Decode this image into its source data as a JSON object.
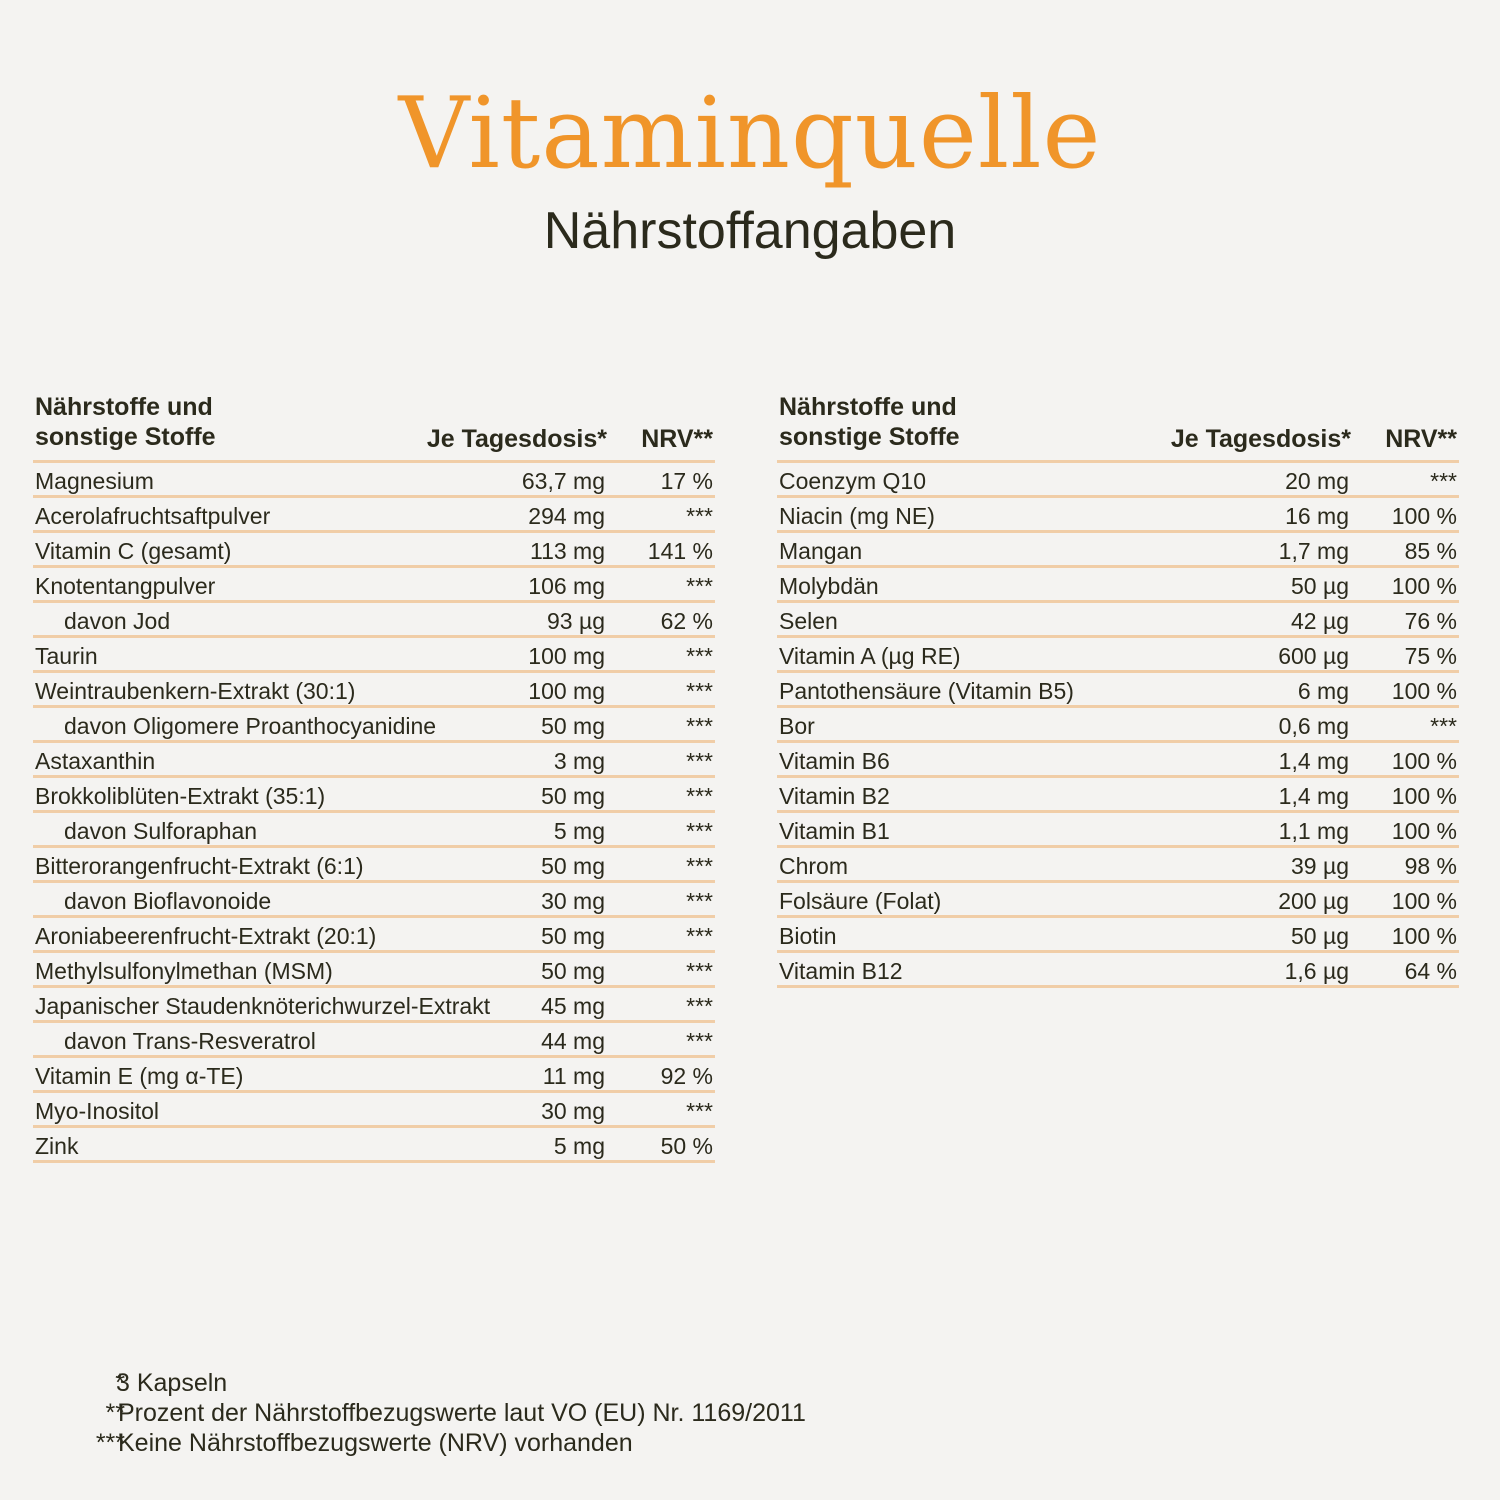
{
  "header": {
    "title": "Vitaminquelle",
    "subtitle": "Nährstoffangaben"
  },
  "columns": {
    "name_line1": "Nährstoffe und",
    "name_line2": "sonstige Stoffe",
    "dose": "Je Tagesdosis*",
    "nrv": "NRV**"
  },
  "left_table": [
    {
      "name": "Magnesium",
      "dose": "63,7 mg",
      "nrv": "17 %",
      "sub": false
    },
    {
      "name": "Acerolafruchtsaftpulver",
      "dose": "294 mg",
      "nrv": "***",
      "sub": false
    },
    {
      "name": "Vitamin C  (gesamt)",
      "dose": "113 mg",
      "nrv": "141 %",
      "sub": false
    },
    {
      "name": "Knotentangpulver",
      "dose": "106 mg",
      "nrv": "***",
      "sub": false
    },
    {
      "name": "davon Jod",
      "dose": "93 µg",
      "nrv": "62 %",
      "sub": true
    },
    {
      "name": "Taurin",
      "dose": "100 mg",
      "nrv": "***",
      "sub": false
    },
    {
      "name": "Weintraubenkern-Extrakt (30:1)",
      "dose": "100 mg",
      "nrv": "***",
      "sub": false
    },
    {
      "name": "davon Oligomere Proanthocyanidine",
      "dose": "50 mg",
      "nrv": "***",
      "sub": true
    },
    {
      "name": "Astaxanthin",
      "dose": "3 mg",
      "nrv": "***",
      "sub": false
    },
    {
      "name": "Brokkoliblüten-Extrakt (35:1)",
      "dose": "50 mg",
      "nrv": "***",
      "sub": false
    },
    {
      "name": "davon Sulforaphan",
      "dose": "5 mg",
      "nrv": "***",
      "sub": true
    },
    {
      "name": "Bitterorangenfrucht-Extrakt (6:1)",
      "dose": "50 mg",
      "nrv": "***",
      "sub": false
    },
    {
      "name": "davon Bioflavonoide",
      "dose": "30 mg",
      "nrv": "***",
      "sub": true
    },
    {
      "name": "Aroniabeerenfrucht-Extrakt (20:1)",
      "dose": "50 mg",
      "nrv": "***",
      "sub": false
    },
    {
      "name": "Methylsulfonylmethan (MSM)",
      "dose": "50 mg",
      "nrv": "***",
      "sub": false
    },
    {
      "name": "Japanischer Staudenknöterichwurzel-Extrakt",
      "dose": "45 mg",
      "nrv": "***",
      "sub": false
    },
    {
      "name": "davon Trans-Resveratrol",
      "dose": "44 mg",
      "nrv": "***",
      "sub": true
    },
    {
      "name": "Vitamin E (mg α-TE)",
      "dose": "11 mg",
      "nrv": "92 %",
      "sub": false
    },
    {
      "name": "Myo-Inositol",
      "dose": "30 mg",
      "nrv": "***",
      "sub": false
    },
    {
      "name": "Zink",
      "dose": "5 mg",
      "nrv": "50 %",
      "sub": false
    }
  ],
  "right_table": [
    {
      "name": "Coenzym Q10",
      "dose": "20 mg",
      "nrv": "***",
      "sub": false
    },
    {
      "name": "Niacin (mg NE)",
      "dose": "16 mg",
      "nrv": "100 %",
      "sub": false
    },
    {
      "name": "Mangan",
      "dose": "1,7 mg",
      "nrv": "85 %",
      "sub": false
    },
    {
      "name": "Molybdän",
      "dose": "50 µg",
      "nrv": "100 %",
      "sub": false
    },
    {
      "name": "Selen",
      "dose": "42 µg",
      "nrv": "76 %",
      "sub": false
    },
    {
      "name": "Vitamin A (µg RE)",
      "dose": "600 µg",
      "nrv": "75 %",
      "sub": false
    },
    {
      "name": "Pantothensäure (Vitamin B5)",
      "dose": "6 mg",
      "nrv": "100 %",
      "sub": false
    },
    {
      "name": "Bor",
      "dose": "0,6 mg",
      "nrv": "***",
      "sub": false
    },
    {
      "name": "Vitamin B6",
      "dose": "1,4 mg",
      "nrv": "100 %",
      "sub": false
    },
    {
      "name": "Vitamin B2",
      "dose": "1,4 mg",
      "nrv": "100 %",
      "sub": false
    },
    {
      "name": "Vitamin B1",
      "dose": "1,1 mg",
      "nrv": "100 %",
      "sub": false
    },
    {
      "name": "Chrom",
      "dose": "39 µg",
      "nrv": "98 %",
      "sub": false
    },
    {
      "name": "Folsäure (Folat)",
      "dose": "200 µg",
      "nrv": "100 %",
      "sub": false
    },
    {
      "name": "Biotin",
      "dose": "50 µg",
      "nrv": "100 %",
      "sub": false
    },
    {
      "name": "Vitamin B12",
      "dose": "1,6 µg",
      "nrv": "64 %",
      "sub": false
    }
  ],
  "footnotes": [
    {
      "mark": "*",
      "text": "3 Kapseln"
    },
    {
      "mark": "**",
      "text": "Prozent der Nährstoffbezugswerte laut VO (EU) Nr. 1169/2011"
    },
    {
      "mark": "***",
      "text": "Keine Nährstoffbezugswerte (NRV) vorhanden"
    }
  ],
  "colors": {
    "title": "#f0952a",
    "text": "#2b2a1c",
    "rule": "#f0cda7",
    "background": "#f4f3f1"
  }
}
